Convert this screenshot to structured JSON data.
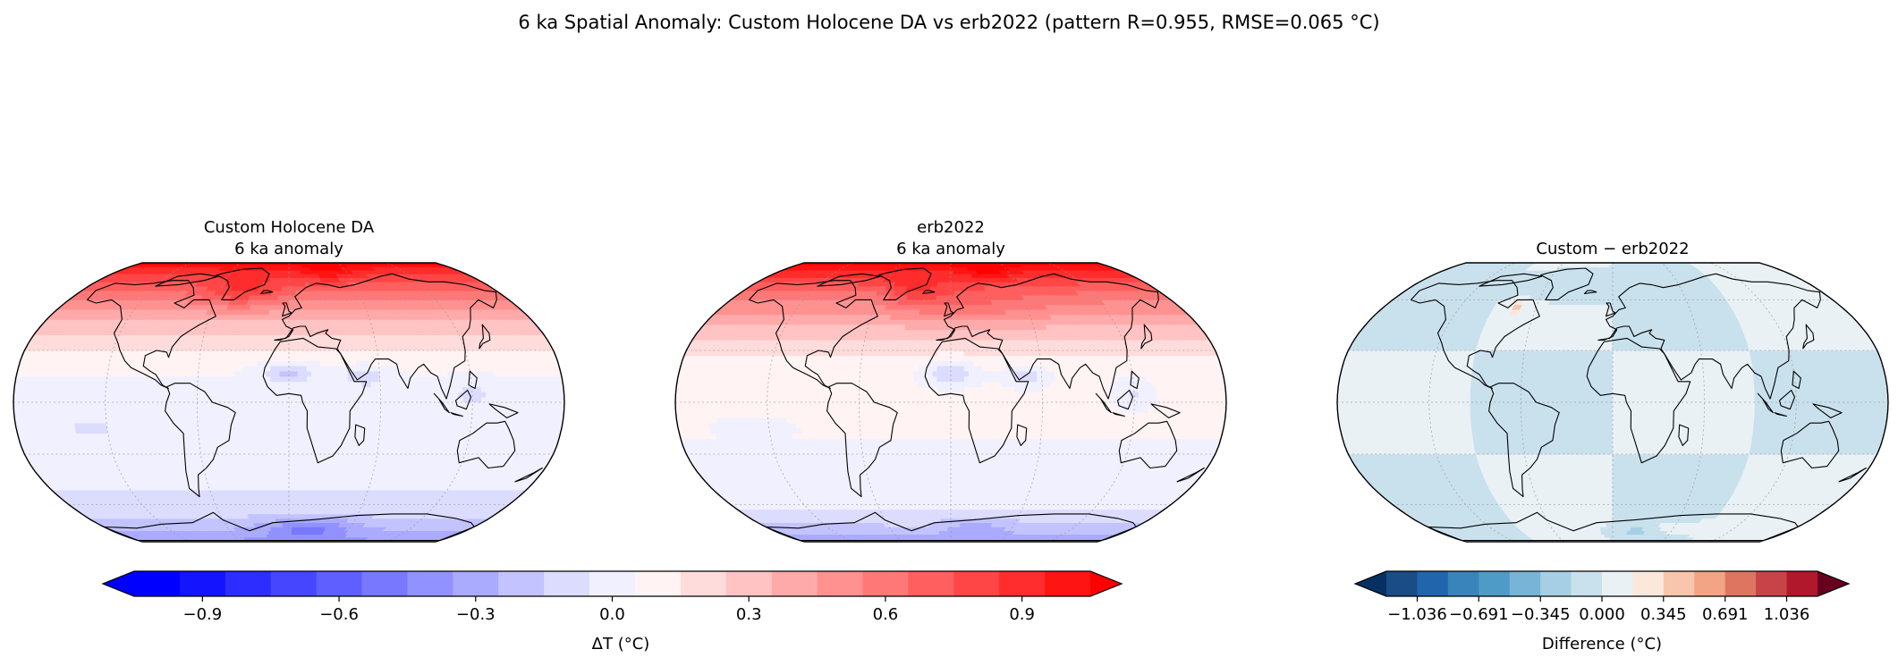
{
  "figure": {
    "title": "6 ka Spatial Anomaly: Custom Holocene DA vs erb2022   (pattern R=0.955, RMSE=0.065 °C)"
  },
  "panels": [
    {
      "id": "custom",
      "title_line1": "Custom Holocene DA",
      "title_line2": "6 ka anomaly"
    },
    {
      "id": "erb2022",
      "title_line1": "erb2022",
      "title_line2": "6 ka anomaly"
    },
    {
      "id": "difference",
      "title_line1": "Custom − erb2022",
      "title_line2": ""
    }
  ],
  "colorbars": {
    "anomaly": {
      "label": "ΔT (°C)",
      "ticks": [
        "−0.9",
        "−0.6",
        "−0.3",
        "0.0",
        "0.3",
        "0.6",
        "0.9"
      ],
      "tick_values": [
        -0.9,
        -0.6,
        -0.3,
        0.0,
        0.3,
        0.6,
        0.9
      ],
      "range": [
        -1.05,
        1.05
      ],
      "n_bins": 21,
      "extend": "both",
      "colormap": "bwr",
      "colors": [
        "#0000ff",
        "#1414ff",
        "#2d2dff",
        "#4646ff",
        "#5f5fff",
        "#7878ff",
        "#9191ff",
        "#aaaaff",
        "#c3c3ff",
        "#dcdcff",
        "#f0f0ff",
        "#fff3f3",
        "#ffdcdc",
        "#ffc3c3",
        "#ffaaaa",
        "#ff9191",
        "#ff7878",
        "#ff5f5f",
        "#ff4646",
        "#ff2d2d",
        "#ff1414"
      ],
      "under_color": "#0000ff",
      "over_color": "#ff0000"
    },
    "difference": {
      "label": "Difference (°C)",
      "ticks": [
        "−1.036",
        "−0.691",
        "−0.345",
        "0.000",
        "0.345",
        "0.691",
        "1.036"
      ],
      "tick_values": [
        -1.036,
        -0.691,
        -0.345,
        0.0,
        0.345,
        0.691,
        1.036
      ],
      "range": [
        -1.209,
        1.209
      ],
      "n_bins": 14,
      "extend": "both",
      "colormap": "RdBu_r",
      "colors": [
        "#1a4c86",
        "#2166ac",
        "#3884bb",
        "#4f9bc7",
        "#78b4d5",
        "#a6cfe3",
        "#c9e1ed",
        "#e9f1f5",
        "#fbe7dc",
        "#f7c6ac",
        "#f2a484",
        "#de7560",
        "#c84347",
        "#b2182b"
      ],
      "under_color": "#053061",
      "over_color": "#67001f"
    }
  }
}
